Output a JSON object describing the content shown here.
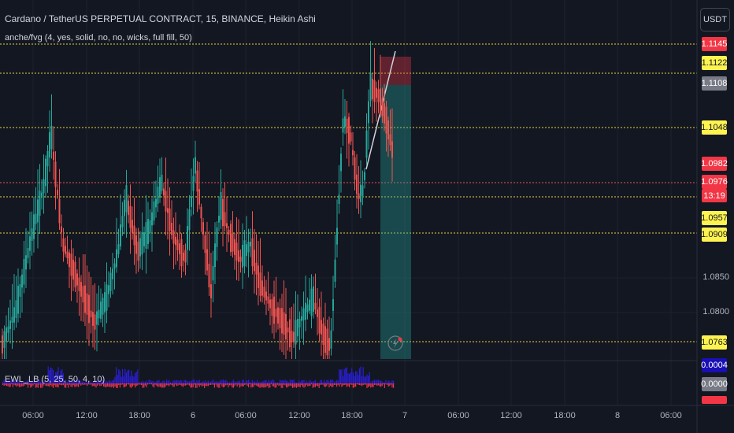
{
  "header": {
    "title": "Cardano / TetherUS PERPETUAL CONTRACT, 15, BINANCE, Heikin Ashi",
    "indicator": "anche/fvg (4, yes, solid, no, no, wicks, full fill, 50)"
  },
  "currency_button": "USDT",
  "oscillator": {
    "label": "EWL_LB (5, 25, 50, 4, 10)"
  },
  "price_axis": {
    "labels": [
      "1.0850",
      "1.0800"
    ]
  },
  "price_tags": {
    "t1145": "1.1145",
    "t1122": "1.1122",
    "t1108": "1.1108",
    "t1048": "1.1048",
    "t0982": "1.0982",
    "t0976": "1.0976",
    "countdown": "13:19",
    "t0957": "1.0957",
    "t0909": "1.0909",
    "t0763": "1.0763",
    "t0004": "0.0004",
    "t0000": "0.0000"
  },
  "time_axis": [
    "06:00",
    "12:00",
    "18:00",
    "6",
    "06:00",
    "12:00",
    "18:00",
    "7",
    "06:00",
    "12:00",
    "18:00",
    "8",
    "06:00"
  ],
  "colors": {
    "background": "#131722",
    "bull": "#26a69a",
    "bear": "#ef5350",
    "yellow_line": "#e8d33c",
    "red_line": "#ef5350",
    "tag_yellow": "#fff34f",
    "tag_red": "#f23645",
    "tag_gray": "#787b86",
    "tag_blue": "#1a0fb5"
  },
  "icons": [
    "lightning-icon"
  ]
}
